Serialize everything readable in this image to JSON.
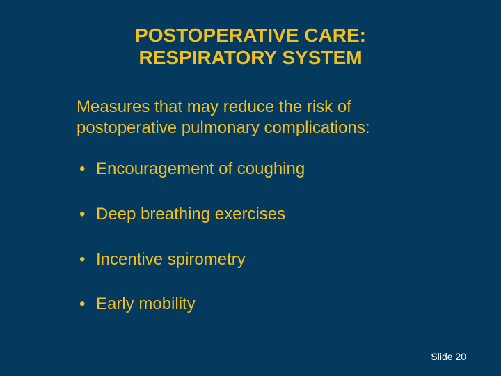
{
  "slide": {
    "background_color": "#043a5e",
    "accent_color": "#f2c01e",
    "footer_color": "#ffffff",
    "title_fontsize": 28,
    "body_fontsize": 24,
    "footer_fontsize": 14,
    "bullet_spacing": 36,
    "title": {
      "line1": "POSTOPERATIVE CARE:",
      "line2": "RESPIRATORY SYSTEM"
    },
    "intro": "Measures that may reduce the risk of postoperative pulmonary complications:",
    "bullets": [
      "Encouragement of coughing",
      "Deep breathing exercises",
      "Incentive spirometry",
      "Early mobility"
    ],
    "footer": "Slide 20"
  }
}
